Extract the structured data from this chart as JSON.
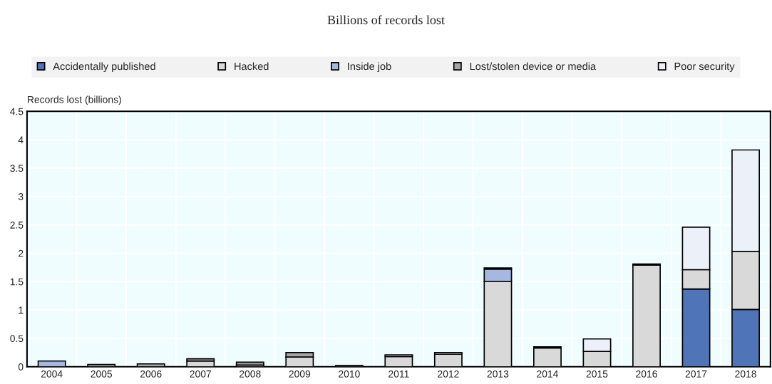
{
  "chart_data": {
    "type": "bar",
    "title": "Billions of records lost",
    "ylabel": "Records lost (billions)",
    "categories": [
      "2004",
      "2005",
      "2006",
      "2007",
      "2008",
      "2009",
      "2010",
      "2011",
      "2012",
      "2013",
      "2014",
      "2015",
      "2016",
      "2017",
      "2018"
    ],
    "stacked": true,
    "series": [
      {
        "name": "Accidentally published",
        "color": "#4f74b8",
        "values": [
          null,
          null,
          null,
          null,
          null,
          null,
          null,
          null,
          null,
          null,
          null,
          null,
          null,
          1.37,
          1.01
        ]
      },
      {
        "name": "Hacked",
        "color": "#d9d9d9",
        "values": [
          null,
          null,
          null,
          0.1,
          0.03,
          0.17,
          null,
          0.18,
          0.22,
          1.5,
          0.33,
          0.27,
          1.79,
          0.34,
          1.02
        ]
      },
      {
        "name": "Inside job",
        "color": "#a6b8e0",
        "values": [
          0.1,
          null,
          null,
          null,
          null,
          null,
          null,
          null,
          null,
          0.22,
          null,
          null,
          null,
          null,
          null
        ]
      },
      {
        "name": "Lost/stolen device or media",
        "color": "#a6a6a6",
        "values": [
          null,
          0.04,
          0.05,
          0.04,
          0.05,
          0.08,
          0.02,
          null,
          null,
          null,
          null,
          null,
          null,
          null,
          null
        ]
      },
      {
        "name": "Poor security",
        "color": "#ecf0f8",
        "values": [
          null,
          null,
          null,
          null,
          null,
          null,
          null,
          0.03,
          0.03,
          0.02,
          0.02,
          0.22,
          0.02,
          0.75,
          1.79
        ]
      }
    ],
    "ylim": [
      0,
      4.5
    ],
    "yticks": [
      0,
      0.5,
      1,
      1.5,
      2,
      2.5,
      3,
      3.5,
      4,
      4.5
    ],
    "grid": true,
    "legend": "top"
  }
}
